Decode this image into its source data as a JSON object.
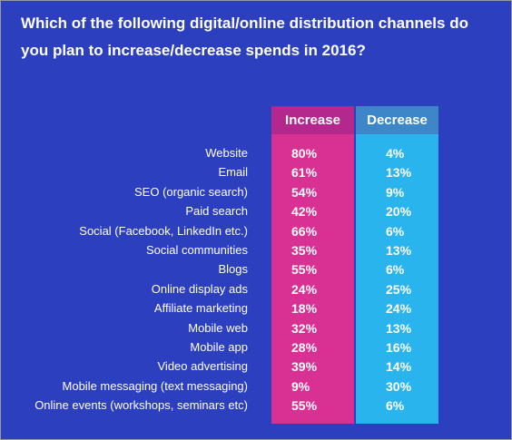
{
  "header": {
    "title": "Which of the following digital/online distribution channels do you plan to increase/decrease spends in 2016?"
  },
  "table": {
    "columns": [
      "Increase",
      "Decrease"
    ],
    "rows": [
      [
        "Website",
        "80%",
        "4%"
      ],
      [
        "Email",
        "61%",
        "13%"
      ],
      [
        "SEO (organic search)",
        "54%",
        "9%"
      ],
      [
        "Paid search",
        "42%",
        "20%"
      ],
      [
        "Social (Facebook, LinkedIn etc.)",
        "66%",
        "6%"
      ],
      [
        "Social communities",
        "35%",
        "13%"
      ],
      [
        "Blogs",
        "55%",
        "6%"
      ],
      [
        "Online display ads",
        "24%",
        "25%"
      ],
      [
        "Affiliate marketing",
        "18%",
        "24%"
      ],
      [
        "Mobile web",
        "32%",
        "13%"
      ],
      [
        "Mobile app",
        "28%",
        "16%"
      ],
      [
        "Video advertising",
        "39%",
        "14%"
      ],
      [
        "Mobile messaging (text messaging)",
        "9%",
        "30%"
      ],
      [
        "Online events (workshops, seminars etc)",
        "55%",
        "6%"
      ]
    ]
  }
}
